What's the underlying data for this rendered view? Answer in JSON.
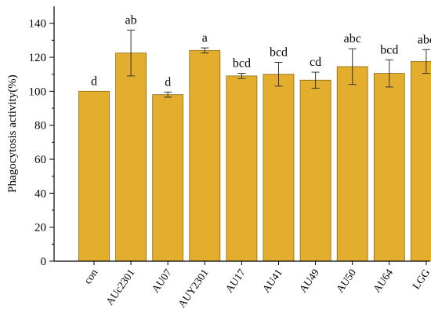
{
  "chart_data": {
    "type": "bar",
    "categories": [
      "con",
      "AUc2301",
      "AU07",
      "AUY2301",
      "AU17",
      "AU41",
      "AU49",
      "AU50",
      "AU64",
      "LGG"
    ],
    "values": [
      100,
      122.5,
      98,
      124,
      109,
      110,
      106.5,
      114.5,
      110.5,
      117.5
    ],
    "errors": [
      0,
      13.5,
      1.5,
      1.5,
      1.5,
      7,
      4.7,
      10.5,
      8,
      7
    ],
    "significance": [
      "d",
      "ab",
      "d",
      "a",
      "bcd",
      "bcd",
      "cd",
      "abc",
      "bcd",
      "abc"
    ],
    "ylabel": "Phagocytosis activity(%)",
    "xlabel": "",
    "ylim": [
      0,
      150
    ],
    "yticks": [
      0,
      20,
      40,
      60,
      80,
      100,
      120,
      140
    ],
    "bar_color": "#E3AD2D",
    "grid": false,
    "legend": "none"
  }
}
